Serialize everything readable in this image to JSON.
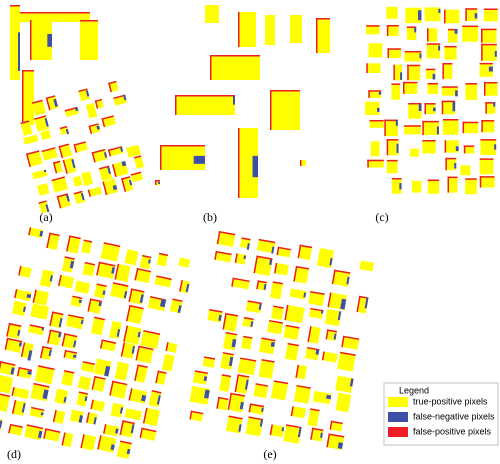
{
  "panels": [
    {
      "label": "(a)"
    },
    {
      "label": "(b)"
    },
    {
      "label": "(c)"
    },
    {
      "label": "(d)"
    },
    {
      "label": "(e)"
    }
  ],
  "legend": {
    "title": "Legend",
    "items": [
      {
        "label": "true-positive pixels",
        "color": "#ffff00"
      },
      {
        "label": "false-negative pixels",
        "color": "#3f4fa8"
      },
      {
        "label": "false-positive pixels",
        "color": "#ee1c24"
      }
    ]
  }
}
